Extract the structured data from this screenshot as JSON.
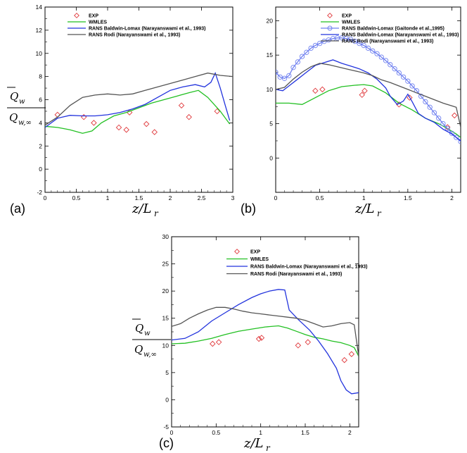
{
  "figure": {
    "y_label_top": "Q",
    "y_label_top_sub": "w",
    "y_label_bottom": "Q",
    "y_label_bottom_sub": "w,∞",
    "x_label_main": "z/L",
    "x_label_sub": "r",
    "colors": {
      "exp": "#e0383b",
      "wmles": "#22c022",
      "baldwin": "#2233dd",
      "rodi": "#555555",
      "gaitonde": "#6f80f0"
    }
  },
  "chart_data": [
    {
      "panel_label": "(a)",
      "type": "line",
      "xlim": [
        0,
        3
      ],
      "ylim": [
        -2,
        14
      ],
      "xticks": [
        0,
        0.5,
        1,
        1.5,
        2,
        2.5,
        3
      ],
      "xtick_labels": [
        "0",
        "0.5",
        "1",
        "1.5",
        "2",
        "2.5",
        "3"
      ],
      "yticks": [
        -2,
        0,
        2,
        4,
        6,
        8,
        10,
        12,
        14
      ],
      "ytick_labels": [
        "-2",
        "0",
        "2",
        "4",
        "6",
        "8",
        "10",
        "12",
        "14"
      ],
      "legend_position": "top-left",
      "series": [
        {
          "name": "EXP",
          "kind": "diamond",
          "color": "#e0383b",
          "x": [
            0.2,
            0.62,
            0.78,
            1.18,
            1.3,
            1.35,
            1.62,
            1.75,
            2.18,
            2.3,
            2.75
          ],
          "y": [
            4.7,
            4.5,
            4.0,
            3.6,
            3.4,
            4.9,
            3.9,
            3.2,
            5.5,
            4.5,
            5.0
          ]
        },
        {
          "name": "WMLES",
          "kind": "line",
          "color": "#22c022",
          "x": [
            0,
            0.2,
            0.4,
            0.6,
            0.75,
            0.9,
            1.1,
            1.3,
            1.5,
            1.7,
            1.9,
            2.1,
            2.3,
            2.45,
            2.6,
            2.8,
            2.95
          ],
          "y": [
            3.7,
            3.6,
            3.4,
            3.1,
            3.3,
            4.0,
            4.6,
            4.9,
            5.3,
            5.7,
            6.0,
            6.3,
            6.6,
            6.8,
            6.2,
            5.0,
            3.9
          ]
        },
        {
          "name": "RANS Baldwin-Lomax  (Narayanswami et al., 1993)",
          "kind": "line",
          "color": "#2233dd",
          "x": [
            0,
            0.2,
            0.4,
            0.6,
            0.8,
            1.0,
            1.2,
            1.4,
            1.6,
            1.8,
            2.0,
            2.2,
            2.4,
            2.55,
            2.65,
            2.72,
            2.8,
            2.88,
            2.95
          ],
          "y": [
            3.6,
            4.4,
            4.65,
            4.6,
            4.6,
            4.7,
            4.9,
            5.2,
            5.6,
            6.2,
            6.8,
            7.1,
            7.3,
            7.1,
            7.5,
            8.3,
            7.0,
            5.5,
            4.2
          ]
        },
        {
          "name": "RANS Rodi  (Narayanswami et al., 1993)",
          "kind": "line",
          "color": "#555555",
          "x": [
            0,
            0.2,
            0.4,
            0.6,
            0.8,
            1.0,
            1.2,
            1.4,
            1.6,
            1.8,
            2.0,
            2.2,
            2.4,
            2.6,
            2.7,
            2.8,
            3.0
          ],
          "y": [
            3.8,
            4.5,
            5.5,
            6.2,
            6.4,
            6.5,
            6.4,
            6.5,
            6.8,
            7.1,
            7.4,
            7.7,
            8.0,
            8.3,
            8.2,
            8.1,
            8.0
          ]
        }
      ]
    },
    {
      "panel_label": "(b)",
      "type": "line",
      "xlim": [
        0,
        2.1
      ],
      "ylim": [
        -5,
        22
      ],
      "xticks": [
        0,
        0.5,
        1,
        1.5,
        2
      ],
      "xtick_labels": [
        "0",
        "0.5",
        "1",
        "1.5",
        "2"
      ],
      "yticks": [
        0,
        5,
        10,
        15,
        20
      ],
      "ytick_labels": [
        "0",
        "5",
        "10",
        "15",
        "20"
      ],
      "legend_position": "top-center",
      "series": [
        {
          "name": "EXP",
          "kind": "diamond",
          "color": "#e0383b",
          "x": [
            0.45,
            0.53,
            0.98,
            1.01,
            1.4,
            1.52,
            1.95,
            2.03
          ],
          "y": [
            9.8,
            10.0,
            9.2,
            9.8,
            7.8,
            8.8,
            4.5,
            6.2
          ]
        },
        {
          "name": "WMLES",
          "kind": "line",
          "color": "#22c022",
          "x": [
            0,
            0.15,
            0.3,
            0.45,
            0.6,
            0.75,
            0.9,
            1.0,
            1.1,
            1.25,
            1.4,
            1.55,
            1.7,
            1.85,
            1.95,
            2.05,
            2.1
          ],
          "y": [
            8.0,
            8.0,
            7.8,
            8.8,
            9.8,
            10.4,
            10.6,
            10.7,
            10.5,
            9.5,
            8.0,
            7.0,
            5.8,
            5.0,
            4.3,
            3.5,
            3.0
          ]
        },
        {
          "name": "RANS Baldwin-Lomax  (Gaitonde et al.,1995)",
          "kind": "circle",
          "color": "#6f80f0",
          "x": [
            0,
            0.05,
            0.1,
            0.15,
            0.2,
            0.25,
            0.3,
            0.35,
            0.4,
            0.45,
            0.5,
            0.55,
            0.6,
            0.65,
            0.7,
            0.75,
            0.8,
            0.85,
            0.9,
            0.95,
            1.0,
            1.05,
            1.1,
            1.15,
            1.2,
            1.25,
            1.3,
            1.35,
            1.4,
            1.45,
            1.5,
            1.55,
            1.6,
            1.65,
            1.7,
            1.75,
            1.8,
            1.85,
            1.9,
            1.95,
            2.0,
            2.05,
            2.1
          ],
          "y": [
            12.5,
            11.8,
            11.6,
            12.0,
            13.2,
            14.0,
            14.8,
            15.4,
            16.0,
            16.4,
            16.7,
            17.0,
            17.2,
            17.4,
            17.5,
            17.5,
            17.4,
            17.3,
            17.0,
            16.7,
            16.4,
            16.0,
            15.6,
            15.2,
            14.7,
            14.2,
            13.6,
            13.0,
            12.4,
            11.8,
            11.2,
            10.5,
            9.8,
            9.0,
            8.2,
            7.4,
            6.6,
            5.8,
            5.0,
            4.3,
            3.6,
            3.0,
            2.4
          ]
        },
        {
          "name": "RANS Baldwin-Lomax  (Narayanswami et al., 1993)",
          "kind": "line",
          "color": "#2233dd",
          "x": [
            0,
            0.08,
            0.15,
            0.25,
            0.35,
            0.45,
            0.55,
            0.65,
            0.75,
            0.85,
            0.95,
            1.05,
            1.15,
            1.25,
            1.3,
            1.38,
            1.45,
            1.5,
            1.55,
            1.62,
            1.7,
            1.8,
            1.9,
            2.0,
            2.1
          ],
          "y": [
            10.0,
            9.8,
            10.5,
            11.5,
            12.5,
            13.5,
            13.9,
            14.3,
            13.8,
            13.4,
            13.0,
            12.4,
            11.5,
            10.2,
            9.0,
            7.8,
            8.3,
            9.3,
            8.2,
            6.5,
            5.8,
            5.2,
            4.2,
            3.5,
            2.5
          ]
        },
        {
          "name": "RANS Rodi  (Narayanswami et al., 1993)",
          "kind": "line",
          "color": "#555555",
          "x": [
            0,
            0.1,
            0.2,
            0.3,
            0.4,
            0.5,
            0.6,
            0.7,
            0.8,
            0.9,
            1.0,
            1.1,
            1.2,
            1.3,
            1.4,
            1.5,
            1.6,
            1.7,
            1.8,
            1.9,
            2.0,
            2.05,
            2.1
          ],
          "y": [
            10.0,
            10.3,
            11.5,
            12.5,
            13.3,
            13.8,
            13.6,
            13.3,
            13.0,
            12.7,
            12.4,
            12.0,
            11.4,
            11.0,
            10.5,
            10.0,
            9.5,
            9.0,
            8.5,
            8.0,
            7.6,
            7.4,
            4.5
          ]
        }
      ]
    },
    {
      "panel_label": "(c)",
      "type": "line",
      "xlim": [
        0,
        2.1
      ],
      "ylim": [
        -5,
        30
      ],
      "xticks": [
        0,
        0.5,
        1,
        1.5,
        2
      ],
      "xtick_labels": [
        "0",
        "0.5",
        "1",
        "1.5",
        "2"
      ],
      "yticks": [
        -5,
        0,
        5,
        10,
        15,
        20,
        25,
        30
      ],
      "ytick_labels": [
        "-5",
        "0",
        "5",
        "10",
        "15",
        "20",
        "25",
        "30"
      ],
      "legend_position": "top-right",
      "series": [
        {
          "name": "EXP",
          "kind": "diamond",
          "color": "#e0383b",
          "x": [
            0.46,
            0.53,
            0.98,
            1.01,
            1.42,
            1.53,
            1.94,
            2.02
          ],
          "y": [
            10.3,
            10.6,
            11.2,
            11.4,
            10.0,
            10.6,
            7.3,
            8.4
          ]
        },
        {
          "name": "WMLES",
          "kind": "line",
          "color": "#22c022",
          "x": [
            0,
            0.15,
            0.3,
            0.45,
            0.6,
            0.75,
            0.9,
            1.05,
            1.2,
            1.3,
            1.4,
            1.5,
            1.6,
            1.7,
            1.8,
            1.9,
            2.0,
            2.05,
            2.1
          ],
          "y": [
            10.3,
            10.4,
            10.8,
            11.3,
            12.0,
            12.6,
            13.0,
            13.4,
            13.6,
            13.2,
            12.6,
            12.0,
            11.5,
            11.2,
            10.8,
            10.5,
            10.0,
            9.6,
            8.0
          ]
        },
        {
          "name": "RANS Baldwin-Lomax (Narayanswami et al., 1993)",
          "kind": "line",
          "color": "#2233dd",
          "x": [
            0,
            0.15,
            0.3,
            0.45,
            0.6,
            0.75,
            0.9,
            1.0,
            1.1,
            1.2,
            1.27,
            1.32,
            1.42,
            1.55,
            1.65,
            1.75,
            1.85,
            1.9,
            1.96,
            2.02,
            2.1
          ],
          "y": [
            11.0,
            11.3,
            12.5,
            14.5,
            16.0,
            17.5,
            18.8,
            19.5,
            20.0,
            20.3,
            20.2,
            16.5,
            14.8,
            12.8,
            10.8,
            8.5,
            5.8,
            3.5,
            1.8,
            1.1,
            1.3
          ]
        },
        {
          "name": "RANS Rodi  (Narayanswami et al., 1993)",
          "kind": "line",
          "color": "#555555",
          "x": [
            0,
            0.1,
            0.2,
            0.3,
            0.4,
            0.5,
            0.6,
            0.7,
            0.8,
            0.9,
            1.0,
            1.1,
            1.2,
            1.3,
            1.4,
            1.5,
            1.6,
            1.7,
            1.8,
            1.9,
            2.0,
            2.05,
            2.1
          ],
          "y": [
            13.5,
            14.0,
            15.0,
            15.8,
            16.5,
            17.0,
            17.0,
            16.7,
            16.3,
            16.0,
            15.8,
            15.6,
            15.4,
            15.2,
            15.0,
            14.6,
            14.0,
            13.4,
            13.6,
            14.0,
            14.2,
            13.8,
            8.0
          ]
        }
      ]
    }
  ]
}
